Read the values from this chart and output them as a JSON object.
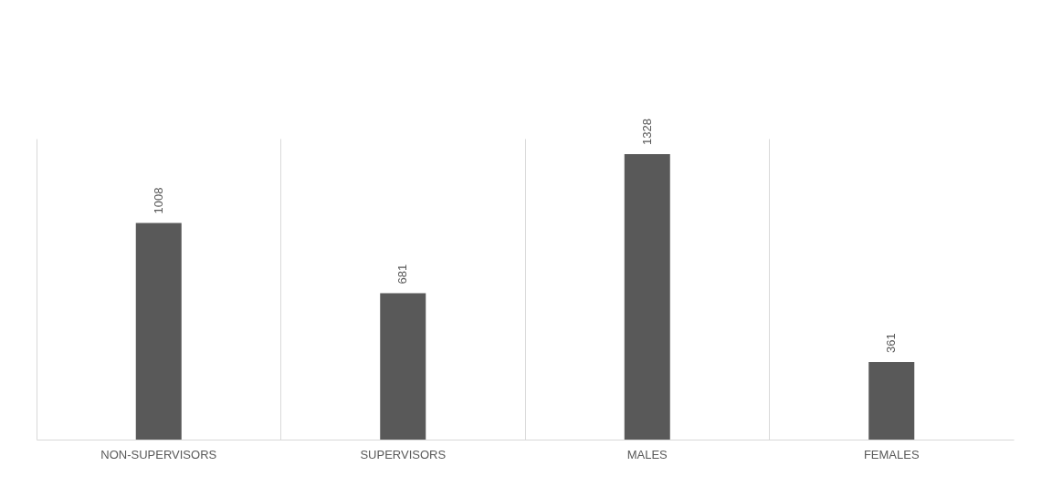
{
  "chart_data": {
    "type": "bar",
    "categories": [
      "NON-SUPERVISORS",
      "SUPERVISORS",
      "MALES",
      "FEMALES"
    ],
    "values": [
      1008,
      681,
      1328,
      361
    ],
    "color": "#595959",
    "data_labels": true,
    "grid": "x"
  }
}
